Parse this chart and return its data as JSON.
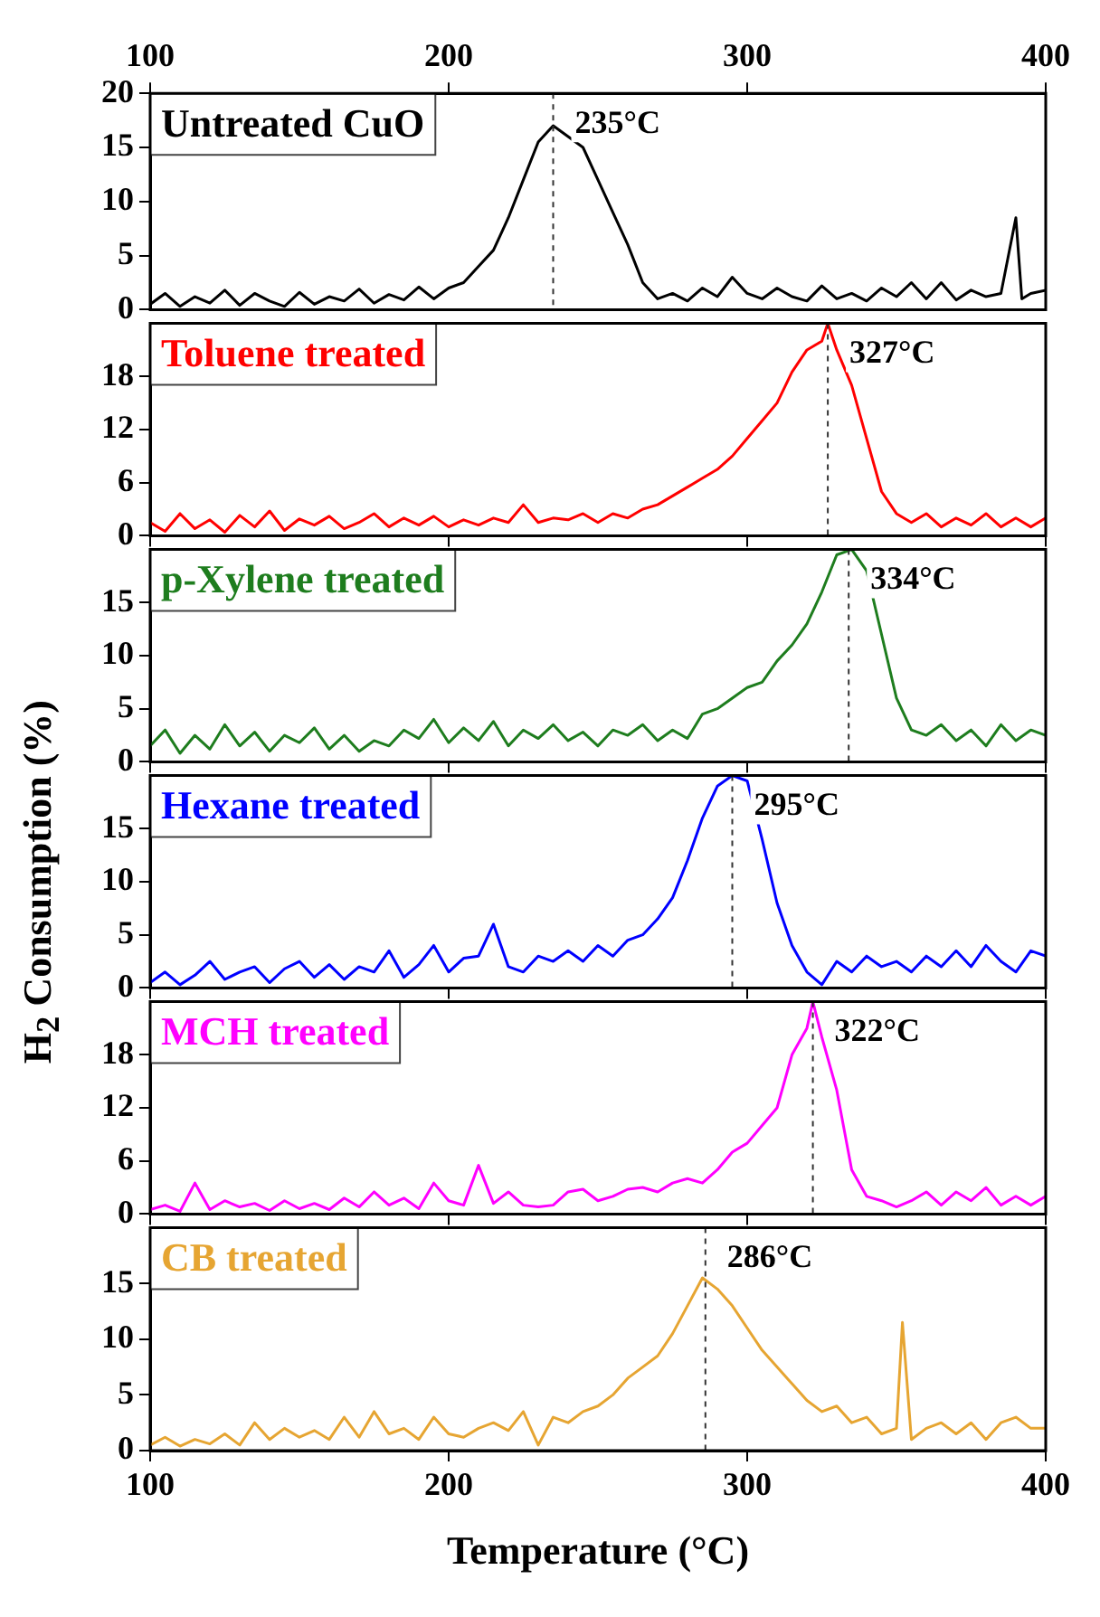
{
  "chart_data": [
    {
      "type": "line",
      "title": "Untreated CuO",
      "xlim": [
        100,
        400
      ],
      "xticks": [
        100,
        200,
        300,
        400
      ],
      "ylim": [
        0,
        20
      ],
      "yticks": [
        0,
        5,
        10,
        15,
        20
      ],
      "series": [
        {
          "color": "#000000",
          "x": [
            100,
            105,
            110,
            115,
            120,
            125,
            130,
            135,
            140,
            145,
            150,
            155,
            160,
            165,
            170,
            175,
            180,
            185,
            190,
            195,
            200,
            205,
            210,
            215,
            220,
            225,
            230,
            235,
            240,
            245,
            250,
            255,
            260,
            265,
            270,
            275,
            280,
            285,
            290,
            295,
            300,
            305,
            310,
            315,
            320,
            325,
            330,
            335,
            340,
            345,
            350,
            355,
            360,
            365,
            370,
            375,
            380,
            385,
            390,
            392,
            395,
            400
          ],
          "values": [
            0.5,
            1.5,
            0.3,
            1.2,
            0.6,
            1.8,
            0.4,
            1.5,
            0.8,
            0.3,
            1.6,
            0.5,
            1.2,
            0.8,
            1.9,
            0.6,
            1.4,
            0.9,
            2.1,
            1.0,
            2.0,
            2.5,
            4.0,
            5.5,
            8.5,
            12,
            15.5,
            17,
            16,
            15,
            12,
            9,
            6,
            2.5,
            1.0,
            1.5,
            0.8,
            2.0,
            1.2,
            3.0,
            1.5,
            1.0,
            2.0,
            1.2,
            0.8,
            2.2,
            1.0,
            1.5,
            0.8,
            2.0,
            1.2,
            2.5,
            1.0,
            2.5,
            0.9,
            1.8,
            1.2,
            1.5,
            8.5,
            1.0,
            1.5,
            1.8
          ]
        }
      ],
      "ref_lines": [
        {
          "axis": "x",
          "value": 235,
          "label": "235°C",
          "line_style": "dashed"
        }
      ]
    },
    {
      "type": "line",
      "title": "Toluene treated",
      "xlim": [
        100,
        400
      ],
      "xticks": [
        100,
        200,
        300,
        400
      ],
      "tick_labels": "y",
      "ylim": [
        0,
        24
      ],
      "yticks": [
        0,
        6,
        12,
        18
      ],
      "series": [
        {
          "color": "#ff0000",
          "x": [
            100,
            105,
            110,
            115,
            120,
            125,
            130,
            135,
            140,
            145,
            150,
            155,
            160,
            165,
            170,
            175,
            180,
            185,
            190,
            195,
            200,
            205,
            210,
            215,
            220,
            225,
            230,
            235,
            240,
            245,
            250,
            255,
            260,
            265,
            270,
            275,
            280,
            285,
            290,
            295,
            300,
            305,
            310,
            315,
            320,
            325,
            327,
            330,
            335,
            340,
            345,
            350,
            355,
            360,
            365,
            370,
            375,
            380,
            385,
            390,
            395,
            400
          ],
          "values": [
            1.5,
            0.5,
            2.5,
            0.8,
            1.8,
            0.4,
            2.3,
            1.0,
            2.8,
            0.6,
            1.9,
            1.2,
            2.2,
            0.8,
            1.5,
            2.5,
            1.0,
            2.0,
            1.2,
            2.2,
            1.0,
            1.8,
            1.2,
            2.0,
            1.5,
            3.5,
            1.5,
            2.0,
            1.8,
            2.5,
            1.5,
            2.5,
            2.0,
            3.0,
            3.5,
            4.5,
            5.5,
            6.5,
            7.5,
            9.0,
            11,
            13,
            15,
            18.5,
            21,
            22,
            24,
            21,
            17,
            11,
            5,
            2.5,
            1.5,
            2.5,
            1.0,
            2.0,
            1.2,
            2.5,
            1.0,
            2.0,
            1.0,
            2.0
          ]
        }
      ],
      "ref_lines": [
        {
          "axis": "x",
          "value": 327,
          "label": "327°C",
          "line_style": "dashed"
        }
      ]
    },
    {
      "type": "line",
      "title": "p-Xylene treated",
      "xlim": [
        100,
        400
      ],
      "xticks": [
        100,
        200,
        300,
        400
      ],
      "tick_labels": "y",
      "ylim": [
        0,
        20
      ],
      "yticks": [
        0,
        5,
        10,
        15
      ],
      "series": [
        {
          "color": "#1e7d1e",
          "x": [
            100,
            105,
            110,
            115,
            120,
            125,
            130,
            135,
            140,
            145,
            150,
            155,
            160,
            165,
            170,
            175,
            180,
            185,
            190,
            195,
            200,
            205,
            210,
            215,
            220,
            225,
            230,
            235,
            240,
            245,
            250,
            255,
            260,
            265,
            270,
            275,
            280,
            285,
            290,
            295,
            300,
            305,
            310,
            315,
            320,
            325,
            330,
            335,
            340,
            345,
            350,
            355,
            360,
            365,
            370,
            375,
            380,
            385,
            390,
            395,
            400
          ],
          "values": [
            1.5,
            3,
            0.8,
            2.5,
            1.2,
            3.5,
            1.5,
            2.8,
            1.0,
            2.5,
            1.8,
            3.2,
            1.2,
            2.5,
            1.0,
            2.0,
            1.5,
            3.0,
            2.2,
            4.0,
            1.8,
            3.2,
            2.0,
            3.8,
            1.5,
            3.0,
            2.2,
            3.5,
            2.0,
            2.8,
            1.5,
            3.0,
            2.5,
            3.5,
            2.0,
            3.0,
            2.2,
            4.5,
            5.0,
            6.0,
            7.0,
            7.5,
            9.5,
            11,
            13,
            16,
            19.5,
            20,
            18,
            12,
            6,
            3,
            2.5,
            3.5,
            2.0,
            3.0,
            1.5,
            3.5,
            2.0,
            3.0,
            2.5
          ]
        }
      ],
      "ref_lines": [
        {
          "axis": "x",
          "value": 334,
          "label": "334°C",
          "line_style": "dashed"
        }
      ]
    },
    {
      "type": "line",
      "title": "Hexane treated",
      "ylabel": "H$_{2}$ Consumption (%)",
      "xlim": [
        100,
        400
      ],
      "xticks": [
        100,
        200,
        300,
        400
      ],
      "tick_labels": "y",
      "ylim": [
        0,
        20
      ],
      "yticks": [
        0,
        5,
        10,
        15
      ],
      "series": [
        {
          "color": "#0000ff",
          "x": [
            100,
            105,
            110,
            115,
            120,
            125,
            130,
            135,
            140,
            145,
            150,
            155,
            160,
            165,
            170,
            175,
            180,
            185,
            190,
            195,
            200,
            205,
            210,
            215,
            220,
            225,
            230,
            235,
            240,
            245,
            250,
            255,
            260,
            265,
            270,
            275,
            280,
            285,
            290,
            295,
            300,
            305,
            310,
            315,
            320,
            325,
            330,
            335,
            340,
            345,
            350,
            355,
            360,
            365,
            370,
            375,
            380,
            385,
            390,
            395,
            400
          ],
          "values": [
            0.5,
            1.5,
            0.3,
            1.2,
            2.5,
            0.8,
            1.5,
            2.0,
            0.5,
            1.8,
            2.5,
            1.0,
            2.2,
            0.8,
            2.0,
            1.5,
            3.5,
            1.0,
            2.2,
            4.0,
            1.5,
            2.8,
            3.0,
            6.0,
            2.0,
            1.5,
            3.0,
            2.5,
            3.5,
            2.5,
            4.0,
            3.0,
            4.5,
            5.0,
            6.5,
            8.5,
            12,
            16,
            19,
            20,
            19.5,
            14,
            8,
            4,
            1.5,
            0.3,
            2.5,
            1.5,
            3.0,
            2.0,
            2.5,
            1.5,
            3.0,
            2.0,
            3.5,
            2.0,
            4.0,
            2.5,
            1.5,
            3.5,
            3.0
          ]
        }
      ],
      "ref_lines": [
        {
          "axis": "x",
          "value": 295,
          "label": "295°C",
          "line_style": "dashed"
        }
      ]
    },
    {
      "type": "line",
      "title": "MCH treated",
      "xlim": [
        100,
        400
      ],
      "xticks": [
        100,
        200,
        300,
        400
      ],
      "tick_labels": "y",
      "ylim": [
        0,
        24
      ],
      "yticks": [
        0,
        6,
        12,
        18
      ],
      "series": [
        {
          "color": "#ff00ff",
          "x": [
            100,
            105,
            110,
            115,
            120,
            125,
            130,
            135,
            140,
            145,
            150,
            155,
            160,
            165,
            170,
            175,
            180,
            185,
            190,
            195,
            200,
            205,
            210,
            215,
            220,
            225,
            230,
            235,
            240,
            245,
            250,
            255,
            260,
            265,
            270,
            275,
            280,
            285,
            290,
            295,
            300,
            305,
            310,
            315,
            320,
            322,
            325,
            330,
            335,
            340,
            345,
            350,
            355,
            360,
            365,
            370,
            375,
            380,
            385,
            390,
            395,
            400
          ],
          "values": [
            0.5,
            1.0,
            0.3,
            3.5,
            0.5,
            1.5,
            0.8,
            1.2,
            0.4,
            1.5,
            0.6,
            1.2,
            0.5,
            1.8,
            0.8,
            2.5,
            1.0,
            1.8,
            0.6,
            3.5,
            1.5,
            1.0,
            5.5,
            1.2,
            2.5,
            1.0,
            0.8,
            1.0,
            2.5,
            2.8,
            1.5,
            2.0,
            2.8,
            3.0,
            2.5,
            3.5,
            4.0,
            3.5,
            5.0,
            7.0,
            8.0,
            10,
            12,
            18,
            21,
            24,
            20,
            14,
            5,
            2.0,
            1.5,
            0.8,
            1.5,
            2.5,
            1.0,
            2.5,
            1.5,
            3.0,
            1.0,
            2.0,
            1.0,
            2.0
          ]
        }
      ],
      "ref_lines": [
        {
          "axis": "x",
          "value": 322,
          "label": "322°C",
          "line_style": "dashed"
        }
      ]
    },
    {
      "type": "line",
      "title": "CB treated",
      "xlabel": "Temperature (°C)",
      "xlim": [
        100,
        400
      ],
      "xticks": [
        100,
        200,
        300,
        400
      ],
      "ylim": [
        0,
        20
      ],
      "yticks": [
        0,
        5,
        10,
        15
      ],
      "series": [
        {
          "color": "#e6a532",
          "x": [
            100,
            105,
            110,
            115,
            120,
            125,
            130,
            135,
            140,
            145,
            150,
            155,
            160,
            165,
            170,
            175,
            180,
            185,
            190,
            195,
            200,
            205,
            210,
            215,
            220,
            225,
            230,
            235,
            240,
            245,
            250,
            255,
            260,
            265,
            270,
            275,
            280,
            285,
            290,
            295,
            300,
            305,
            310,
            315,
            320,
            325,
            330,
            335,
            340,
            345,
            350,
            352,
            355,
            360,
            365,
            370,
            375,
            380,
            385,
            390,
            395,
            400
          ],
          "values": [
            0.5,
            1.2,
            0.4,
            1.0,
            0.6,
            1.5,
            0.5,
            2.5,
            1.0,
            2.0,
            1.2,
            1.8,
            1.0,
            3.0,
            1.2,
            3.5,
            1.5,
            2.0,
            1.0,
            3.0,
            1.5,
            1.2,
            2.0,
            2.5,
            1.8,
            3.5,
            0.5,
            3.0,
            2.5,
            3.5,
            4.0,
            5.0,
            6.5,
            7.5,
            8.5,
            10.5,
            13,
            15.5,
            14.5,
            13,
            11,
            9,
            7.5,
            6,
            4.5,
            3.5,
            4.0,
            2.5,
            3.0,
            1.5,
            2.0,
            11.5,
            1.0,
            2.0,
            2.5,
            1.5,
            2.5,
            1.0,
            2.5,
            3.0,
            2.0,
            2.0
          ]
        }
      ],
      "ref_lines": [
        {
          "axis": "x",
          "value": 286,
          "label": "286°C",
          "line_style": "dashed"
        }
      ]
    }
  ]
}
